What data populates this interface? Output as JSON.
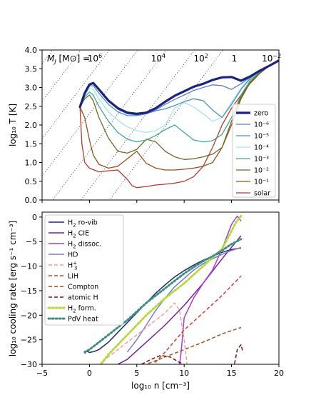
{
  "chart_data": [
    {
      "type": "line",
      "xlabel": "",
      "ylabel": "log₁₀ T [K]",
      "xlim": [
        -5,
        20
      ],
      "ylim": [
        0.0,
        4.0
      ],
      "xticks": [
        -5,
        0,
        5,
        10,
        15,
        20
      ],
      "yticks": [
        0.0,
        0.5,
        1.0,
        1.5,
        2.0,
        2.5,
        3.0,
        3.5,
        4.0
      ],
      "ytick_labels": [
        "0.0",
        "0.5",
        "1.0",
        "1.5",
        "2.0",
        "2.5",
        "3.0",
        "3.5",
        "4.0"
      ],
      "legend": {
        "placement": "lower-right",
        "entries": [
          "zero",
          "10⁻⁶",
          "10⁻⁵",
          "10⁻⁴",
          "10⁻³",
          "10⁻²",
          "10⁻¹",
          "solar"
        ]
      },
      "jeans_mass_annotation": {
        "prefix": "M",
        "prefix_sub": "J",
        "unit": "[M⊙] =",
        "labels": [
          {
            "base": "10",
            "sup": "6",
            "x": -0.2
          },
          {
            "base": "10",
            "sup": "4",
            "x": 6.5
          },
          {
            "base": "10",
            "sup": "2",
            "x": 11.0
          },
          {
            "base": "1",
            "sup": "",
            "x": 15.0
          },
          {
            "base": "10",
            "sup": "−2",
            "x": 18.2
          }
        ]
      },
      "jeans_mass_lines_slope": 3,
      "jeans_mass_lines_intercepts": [
        -0.7,
        0.3,
        1.3,
        2.3,
        3.3,
        4.3,
        5.3,
        6.3
      ],
      "series": [
        {
          "name": "zero",
          "color": "#1a237e",
          "width": 3.2,
          "x": [
            -1,
            -0.5,
            0,
            0.4,
            1,
            2,
            3,
            4,
            5,
            6,
            7,
            8,
            9,
            10,
            11,
            12,
            13,
            14,
            15,
            16,
            17,
            18,
            19,
            20
          ],
          "y": [
            2.48,
            2.85,
            3.08,
            3.12,
            2.95,
            2.65,
            2.45,
            2.33,
            2.3,
            2.33,
            2.45,
            2.62,
            2.78,
            2.9,
            3.02,
            3.1,
            3.2,
            3.27,
            3.28,
            3.18,
            3.3,
            3.45,
            3.58,
            3.72
          ]
        },
        {
          "name": "10⁻⁶",
          "color": "#5b7fd0",
          "width": 1.3,
          "x": [
            -1,
            -0.5,
            0,
            0.4,
            1,
            2,
            3,
            4,
            5,
            6,
            7,
            8,
            9,
            10,
            11,
            12,
            13,
            14,
            15,
            16,
            17,
            18,
            19,
            20
          ],
          "y": [
            2.48,
            2.85,
            3.07,
            3.1,
            2.93,
            2.63,
            2.42,
            2.3,
            2.27,
            2.3,
            2.4,
            2.55,
            2.68,
            2.8,
            2.92,
            3.0,
            3.07,
            3.05,
            2.95,
            3.1,
            3.28,
            3.45,
            3.58,
            3.72
          ]
        },
        {
          "name": "10⁻⁵",
          "color": "#4a90c4",
          "width": 1.3,
          "x": [
            -1,
            -0.5,
            0,
            0.4,
            1,
            2,
            3,
            4,
            5,
            6,
            7,
            8,
            9,
            10,
            11,
            12,
            13,
            14,
            15,
            16,
            17,
            18,
            19,
            20
          ],
          "y": [
            2.48,
            2.83,
            3.04,
            3.05,
            2.85,
            2.55,
            2.35,
            2.25,
            2.25,
            2.3,
            2.38,
            2.43,
            2.52,
            2.62,
            2.7,
            2.65,
            2.4,
            2.2,
            2.55,
            2.95,
            3.25,
            3.45,
            3.58,
            3.72
          ]
        },
        {
          "name": "10⁻⁴",
          "color": "#a8e4ea",
          "width": 1.3,
          "x": [
            -1,
            -0.5,
            0,
            0.4,
            1,
            2,
            3,
            4,
            5,
            6,
            7,
            8,
            9,
            10,
            11,
            12,
            13,
            14,
            15,
            16,
            17,
            18,
            19,
            20
          ],
          "y": [
            2.48,
            2.8,
            2.97,
            2.95,
            2.7,
            2.35,
            2.12,
            1.95,
            1.85,
            1.8,
            1.85,
            2.0,
            2.45,
            2.6,
            2.48,
            2.3,
            2.1,
            2.2,
            2.6,
            2.98,
            3.28,
            3.45,
            3.58,
            3.72
          ]
        },
        {
          "name": "10⁻³",
          "color": "#3aaf83",
          "width": 1.3,
          "x": [
            -1,
            -0.5,
            0,
            0.4,
            1,
            2,
            3,
            4,
            5,
            6,
            7,
            8,
            9,
            10,
            11,
            12,
            13,
            14,
            15,
            16,
            17,
            18,
            19,
            20
          ],
          "y": [
            2.48,
            2.75,
            2.88,
            2.8,
            2.5,
            2.1,
            1.8,
            1.62,
            1.55,
            1.6,
            1.72,
            1.88,
            2.0,
            1.8,
            1.6,
            1.55,
            1.58,
            1.75,
            2.2,
            2.8,
            3.2,
            3.42,
            3.58,
            3.72
          ]
        },
        {
          "name": "10⁻²",
          "color": "#6b6b2a",
          "width": 1.3,
          "x": [
            -1,
            -0.5,
            0,
            0.4,
            1,
            2,
            3,
            4,
            5,
            6,
            7,
            8,
            9,
            10,
            11,
            12,
            13,
            14,
            15,
            16,
            17,
            18,
            19,
            20
          ],
          "y": [
            2.48,
            2.7,
            2.8,
            2.65,
            2.2,
            1.65,
            1.3,
            1.25,
            1.35,
            1.62,
            1.55,
            1.3,
            1.15,
            1.08,
            1.1,
            1.15,
            1.22,
            1.4,
            2.0,
            2.7,
            3.15,
            3.4,
            3.58,
            3.72
          ]
        },
        {
          "name": "10⁻¹",
          "color": "#9c4f1c",
          "width": 1.3,
          "x": [
            -1,
            -0.5,
            0,
            0.4,
            1,
            2,
            3,
            4,
            5,
            6,
            7,
            8,
            9,
            10,
            11,
            12,
            13,
            14,
            15,
            16,
            17,
            18,
            19,
            20
          ],
          "y": [
            2.48,
            2.2,
            1.6,
            1.2,
            0.95,
            0.85,
            0.9,
            1.1,
            1.3,
            0.98,
            0.85,
            0.8,
            0.8,
            0.82,
            0.85,
            0.9,
            1.0,
            1.4,
            2.1,
            2.75,
            3.15,
            3.4,
            3.58,
            3.72
          ]
        },
        {
          "name": "solar",
          "color": "#b83a2e",
          "width": 1.3,
          "x": [
            -1,
            -0.8,
            -0.5,
            0,
            0.5,
            1,
            2,
            3,
            4,
            4.5,
            5,
            6,
            7,
            8,
            9,
            10,
            11,
            12,
            13,
            14,
            15,
            16,
            17,
            18,
            19,
            20
          ],
          "y": [
            2.48,
            1.5,
            1.0,
            0.85,
            0.8,
            0.75,
            0.78,
            0.8,
            0.55,
            0.38,
            0.33,
            0.36,
            0.4,
            0.42,
            0.45,
            0.5,
            0.62,
            0.9,
            1.4,
            2.0,
            2.45,
            2.8,
            3.12,
            3.38,
            3.58,
            3.72
          ]
        }
      ]
    },
    {
      "type": "line",
      "xlabel": "log₁₀ n [cm⁻³]",
      "ylabel": "log₁₀ cooling rate [erg s⁻¹ cm⁻³]",
      "xlim": [
        -5,
        20
      ],
      "ylim": [
        -30,
        1
      ],
      "xticks": [
        -5,
        0,
        5,
        10,
        15,
        20
      ],
      "xtick_labels": [
        "−5",
        "0",
        "5",
        "10",
        "15",
        "20"
      ],
      "yticks": [
        -30,
        -25,
        -20,
        -15,
        -10,
        -5,
        0
      ],
      "ytick_labels": [
        "−30",
        "−25",
        "−20",
        "−15",
        "−10",
        "−5",
        "0"
      ],
      "legend": {
        "placement": "upper-left",
        "entries": [
          {
            "base": "H",
            "sub": "2",
            "rest": " ro-vib"
          },
          {
            "base": "H",
            "sub": "2",
            "rest": " CIE"
          },
          {
            "base": "H",
            "sub": "2",
            "rest": " dissoc."
          },
          {
            "base": "HD",
            "sub": "",
            "rest": ""
          },
          {
            "base": "H",
            "sub": "3",
            "sup": "+",
            "rest": ""
          },
          {
            "base": "LiH",
            "sub": "",
            "rest": ""
          },
          {
            "base": "Compton",
            "sub": "",
            "rest": ""
          },
          {
            "base": "atomic H",
            "sub": "",
            "rest": ""
          },
          {
            "base": "H",
            "sub": "2",
            "rest": " form."
          },
          {
            "base": "PdV heat",
            "sub": "",
            "rest": ""
          }
        ]
      },
      "series": [
        {
          "name": "H₂ ro-vib",
          "color": "#1f2a6e",
          "dash": "",
          "width": 1.5,
          "x": [
            -0.5,
            -0.3,
            0,
            0.5,
            1,
            2,
            3,
            4,
            5,
            6,
            7,
            8,
            9,
            10,
            11,
            12,
            13,
            14,
            15,
            16
          ],
          "y": [
            -27.8,
            -27.3,
            -27.6,
            -27.4,
            -27.0,
            -25.5,
            -23.5,
            -21.5,
            -19.5,
            -17.5,
            -15.5,
            -13.8,
            -12.2,
            -10.9,
            -9.8,
            -8.8,
            -8.0,
            -7.2,
            -6.6,
            -6.3
          ]
        },
        {
          "name": "H₂ CIE",
          "color": "#7b1fa2",
          "dash": "",
          "width": 1.5,
          "x": [
            2,
            4,
            6,
            8,
            10,
            12,
            14,
            16
          ],
          "y": [
            -31,
            -29.0,
            -25.5,
            -22.0,
            -18.0,
            -13.5,
            -8.5,
            -3.8
          ]
        },
        {
          "name": "H₂ dissoc.",
          "color": "#b438d6",
          "dash": "",
          "width": 1.5,
          "x": [
            9.4,
            9.6,
            9.8,
            10,
            11,
            12,
            13,
            14,
            15,
            15.6,
            16
          ],
          "y": [
            -31,
            -29.0,
            -25.0,
            -20.5,
            -16.5,
            -13.5,
            -10.8,
            -6.5,
            -1.5,
            0.2,
            -0.8
          ]
        },
        {
          "name": "HD",
          "color": "#7b79d0",
          "dash": "",
          "width": 1.5,
          "x": [
            4,
            5,
            6,
            7,
            8,
            9,
            10,
            11,
            12,
            13,
            14,
            15,
            16
          ],
          "y": [
            -27.5,
            -25.0,
            -22.0,
            -19.0,
            -16.5,
            -14.2,
            -12.5,
            -10.8,
            -9.5,
            -8.5,
            -7.6,
            -6.8,
            -6.2
          ]
        },
        {
          "name": "H₃⁺",
          "color": "#f0a090",
          "dash": "5,3",
          "width": 1.5,
          "x": [
            0.5,
            2,
            4,
            6,
            8,
            9,
            9.5,
            10,
            10.3
          ],
          "y": [
            -31,
            -28.5,
            -25.5,
            -22.5,
            -19.5,
            -17.5,
            -19.0,
            -25.0,
            -30
          ]
        },
        {
          "name": "LiH",
          "color": "#e53935",
          "dash": "5,3",
          "width": 1.5,
          "x": [
            6.5,
            8,
            10,
            12,
            14,
            16
          ],
          "y": [
            -30.5,
            -27.5,
            -23.0,
            -19.5,
            -16.0,
            -12.0
          ]
        },
        {
          "name": "Compton",
          "color": "#a0521d",
          "dash": "5,3",
          "width": 1.5,
          "x": [
            4.5,
            6,
            8,
            10,
            12,
            14,
            16
          ],
          "y": [
            -31,
            -30.0,
            -28.5,
            -27.0,
            -25.5,
            -23.8,
            -22.5
          ]
        },
        {
          "name": "atomic H",
          "color": "#7b1010",
          "dash": "5,3",
          "width": 1.5,
          "x": [
            5.5,
            6.5,
            7.5,
            8.5,
            9.5,
            10.5,
            11,
            15.2,
            15.6,
            16,
            16.2
          ],
          "y": [
            -30,
            -29.0,
            -28.2,
            -28.5,
            -29.6,
            -30.5,
            -31,
            -31,
            -27.0,
            -26.0,
            -27.5
          ]
        },
        {
          "name": "H₂ form.",
          "color": "#b5d93b",
          "dash": "2,3",
          "width": 3.0,
          "x": [
            0.8,
            2,
            4,
            6,
            8,
            10,
            12,
            14,
            15.5,
            16
          ],
          "y": [
            -31,
            -28.0,
            -24.0,
            -20.0,
            -16.5,
            -13.5,
            -10.0,
            -6.5,
            -1.0,
            0.2
          ]
        },
        {
          "name": "PdV heat",
          "color": "#3e8f82",
          "dash": "2,3",
          "width": 3.0,
          "x": [
            -0.5,
            0,
            2,
            4,
            6,
            8,
            10,
            11,
            12,
            13,
            14,
            15,
            16
          ],
          "y": [
            -27.5,
            -27.0,
            -24.0,
            -21.0,
            -17.5,
            -14.5,
            -11.5,
            -10.2,
            -9.0,
            -8.0,
            -6.8,
            -5.5,
            -4.5
          ]
        }
      ]
    }
  ]
}
